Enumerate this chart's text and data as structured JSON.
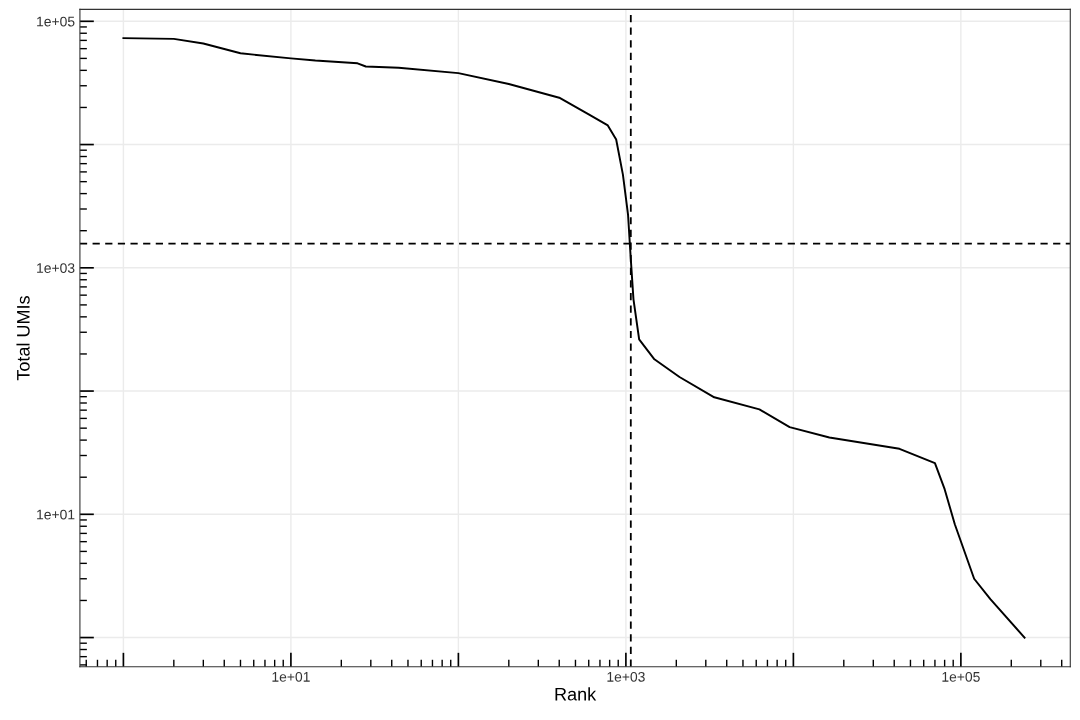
{
  "chart_data": {
    "type": "line",
    "xlabel": "Rank",
    "ylabel": "Total UMIs",
    "log": "xy",
    "grid": true,
    "legend": false,
    "marker": "none",
    "line_style": "solid",
    "x": [
      1,
      2,
      3,
      5,
      10,
      14,
      25,
      28,
      44,
      100,
      200,
      400,
      600,
      780,
      875,
      960,
      1030,
      1070,
      1110,
      1200,
      1480,
      2090,
      3370,
      6270,
      9500,
      16400,
      43000,
      70000,
      80000,
      92000,
      120000,
      150000,
      240000
    ],
    "series": [
      {
        "color": "#000000",
        "values": [
          73000,
          72000,
          66000,
          55000,
          50000,
          48000,
          45600,
          43000,
          42000,
          38000,
          31000,
          24000,
          17600,
          14300,
          11000,
          5700,
          2700,
          1170,
          555,
          263,
          181,
          130,
          89,
          71,
          51,
          42,
          34,
          26,
          16,
          8.3,
          3,
          2.05,
          1.0
        ]
      }
    ],
    "xlim": [
      0.55,
      450000
    ],
    "ylim": [
      0.58,
      125000
    ],
    "xticks": [
      {
        "value": 1,
        "label": null
      },
      {
        "value": 10,
        "label": "1e+01"
      },
      {
        "value": 100,
        "label": null
      },
      {
        "value": 1000,
        "label": "1e+03"
      },
      {
        "value": 10000,
        "label": null
      },
      {
        "value": 100000,
        "label": "1e+05"
      }
    ],
    "yticks": [
      {
        "value": 1,
        "label": null
      },
      {
        "value": 10,
        "label": "1e+01"
      },
      {
        "value": 100,
        "label": null
      },
      {
        "value": 1000,
        "label": "1e+03"
      },
      {
        "value": 10000,
        "label": null
      },
      {
        "value": 100000,
        "label": "1e+05"
      }
    ],
    "ref_lines": [
      {
        "axis": "x",
        "value": 1070,
        "label": null,
        "color": "#000000",
        "line_style": "dashed"
      },
      {
        "axis": "y",
        "value": 1570,
        "label": null,
        "color": "#000000",
        "line_style": "dashed"
      }
    ]
  }
}
